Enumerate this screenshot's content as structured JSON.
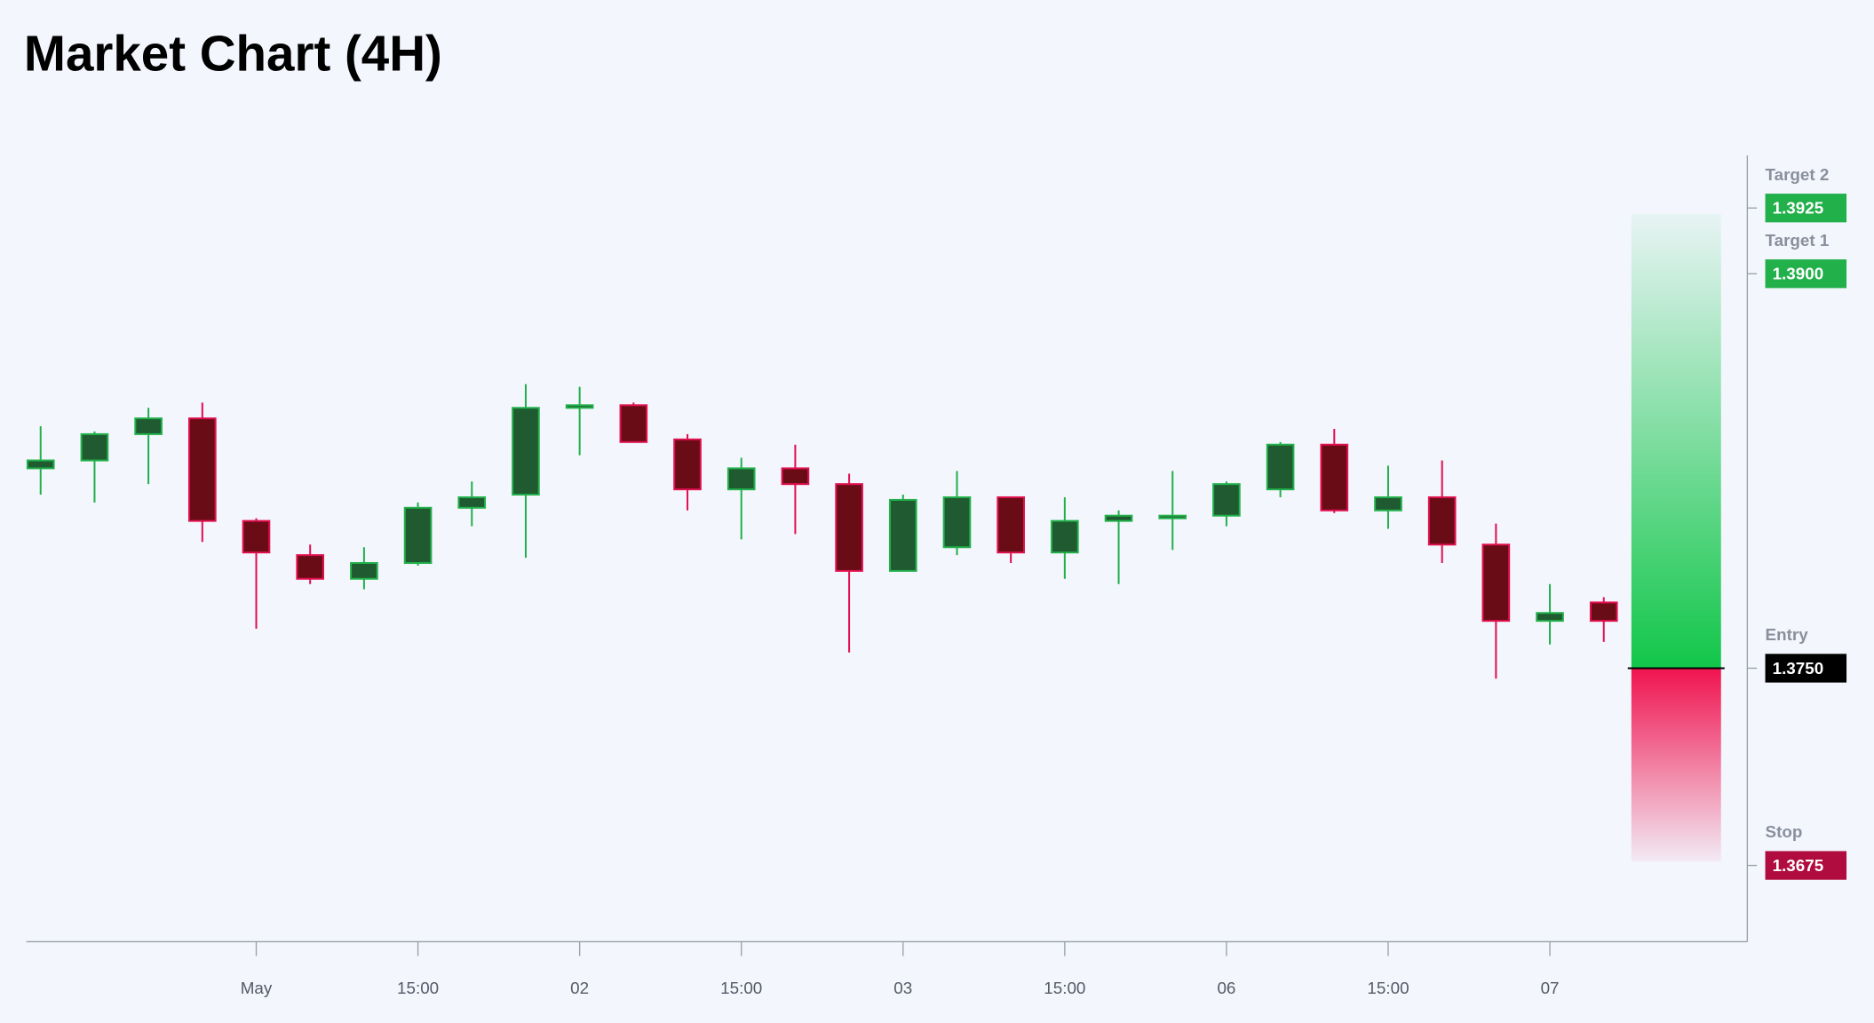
{
  "chart_data": {
    "type": "candlestick",
    "title": "Market Chart (4H)",
    "categories": [
      null,
      null,
      null,
      null,
      "May",
      null,
      null,
      "15:00",
      null,
      null,
      "02",
      null,
      null,
      "15:00",
      null,
      null,
      "03",
      null,
      null,
      "15:00",
      null,
      null,
      "06",
      null,
      null,
      "15:00",
      null,
      null,
      "07",
      null
    ],
    "open": [
      1.3826,
      1.3829,
      1.3839,
      1.3845,
      1.3806,
      1.3793,
      1.3784,
      1.379,
      1.3811,
      1.3816,
      1.3849,
      1.385,
      1.3837,
      1.3818,
      1.3826,
      1.382,
      1.3787,
      1.3796,
      1.3815,
      1.3794,
      1.3806,
      1.3807,
      1.3808,
      1.3818,
      1.3835,
      1.381,
      1.3815,
      1.3797,
      1.3768,
      1.3775
    ],
    "high": [
      1.3842,
      1.384,
      1.3849,
      1.3851,
      1.3807,
      1.3797,
      1.3796,
      1.3813,
      1.3821,
      1.3858,
      1.3857,
      1.3851,
      1.3839,
      1.383,
      1.3835,
      1.3824,
      1.3816,
      1.3825,
      1.3815,
      1.3815,
      1.381,
      1.3825,
      1.3821,
      1.3836,
      1.3841,
      1.3827,
      1.3829,
      1.3805,
      1.3782,
      1.3777
    ],
    "low": [
      1.3816,
      1.3813,
      1.382,
      1.3798,
      1.3765,
      1.3782,
      1.378,
      1.3789,
      1.3804,
      1.3792,
      1.3831,
      1.3836,
      1.381,
      1.3799,
      1.3801,
      1.3756,
      1.3787,
      1.3793,
      1.379,
      1.3784,
      1.3782,
      1.3795,
      1.3804,
      1.3815,
      1.3809,
      1.3803,
      1.379,
      1.3746,
      1.3759,
      1.376
    ],
    "close": [
      1.3829,
      1.3839,
      1.3845,
      1.3806,
      1.3794,
      1.3784,
      1.379,
      1.3811,
      1.3815,
      1.3849,
      1.385,
      1.3836,
      1.3818,
      1.3826,
      1.382,
      1.3787,
      1.3814,
      1.3815,
      1.3794,
      1.3806,
      1.3808,
      1.3808,
      1.382,
      1.3835,
      1.381,
      1.3815,
      1.3797,
      1.3768,
      1.3771,
      1.3768
    ],
    "up_color": "#22b04b",
    "up_fill": "#1f5a30",
    "down_color": "#e0104f",
    "down_fill": "#6a0c15",
    "ylim": [
      1.3646,
      1.3945
    ],
    "levels": [
      {
        "name": "Target 2",
        "value": 1.3925,
        "label": "1.3925",
        "color": "#22b04b"
      },
      {
        "name": "Target 1",
        "value": 1.39,
        "label": "1.3900",
        "color": "#22b04b"
      },
      {
        "name": "Entry",
        "value": 1.375,
        "label": "1.3750",
        "color": "#000000"
      },
      {
        "name": "Stop",
        "value": 1.3675,
        "label": "1.3675",
        "color": "#b00c3f"
      }
    ]
  }
}
